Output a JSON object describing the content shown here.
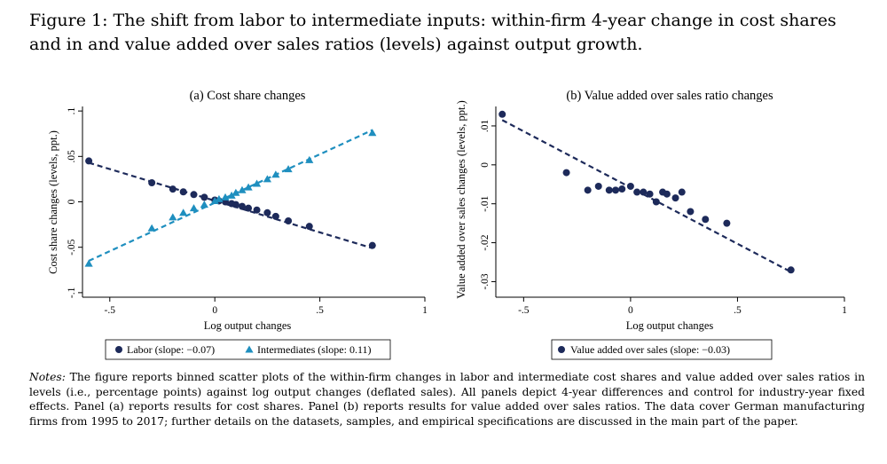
{
  "caption": "Figure 1: The shift from labor to intermediate inputs: within-firm 4-year change in cost shares and in and value added over sales ratios (levels) against output growth.",
  "notes": {
    "label": "Notes:",
    "text": " The figure reports binned scatter plots of the within-firm changes in labor and intermediate cost shares and value added over sales ratios in levels (i.e., percentage points) against log output changes (deflated sales). All panels depict 4-year differences and control for industry-year fixed effects. Panel (a) reports results for cost shares. Panel (b) reports results for value added over sales ratios. The data cover German manufacturing firms from 1995 to 2017; further details on the datasets, samples, and empirical specifications are discussed in the main part of the paper."
  },
  "colors": {
    "labor": "#1d2a5a",
    "intermediates": "#1f8fbf"
  },
  "chart_data": [
    {
      "type": "scatter",
      "title": "(a) Cost share changes",
      "xlabel": "Log output changes",
      "ylabel": "Cost share changes (levels, ppt.)",
      "xlim": [
        -0.63,
        1.0
      ],
      "ylim": [
        -0.105,
        0.105
      ],
      "xticks": [
        {
          "v": -0.5,
          "label": "-.5"
        },
        {
          "v": 0,
          "label": "0"
        },
        {
          "v": 0.5,
          "label": ".5"
        },
        {
          "v": 1,
          "label": "1"
        }
      ],
      "yticks": [
        {
          "v": -0.1,
          "label": "-.1"
        },
        {
          "v": -0.05,
          "label": "-.05"
        },
        {
          "v": 0,
          "label": "0"
        },
        {
          "v": 0.05,
          "label": ".05"
        },
        {
          "v": 0.1,
          "label": ".1"
        }
      ],
      "series": [
        {
          "name": "Labor (slope: −0.07)",
          "marker": "circle",
          "color": "#1d2a5a",
          "x": [
            -0.6,
            -0.3,
            -0.2,
            -0.15,
            -0.1,
            -0.05,
            0.0,
            0.02,
            0.05,
            0.08,
            0.1,
            0.13,
            0.16,
            0.2,
            0.25,
            0.29,
            0.35,
            0.45,
            0.75
          ],
          "y": [
            0.045,
            0.021,
            0.014,
            0.011,
            0.008,
            0.005,
            0.002,
            0.001,
            0.0,
            -0.002,
            -0.003,
            -0.005,
            -0.007,
            -0.009,
            -0.012,
            -0.016,
            -0.021,
            -0.027,
            -0.048
          ],
          "fit": [
            [
              -0.6,
              0.043
            ],
            [
              0.75,
              -0.051
            ]
          ]
        },
        {
          "name": "Intermediates (slope: 0.11)",
          "marker": "triangle",
          "color": "#1f8fbf",
          "x": [
            -0.6,
            -0.3,
            -0.2,
            -0.15,
            -0.1,
            -0.05,
            0.0,
            0.02,
            0.05,
            0.08,
            0.1,
            0.13,
            0.16,
            0.2,
            0.25,
            0.29,
            0.35,
            0.45,
            0.75
          ],
          "y": [
            -0.068,
            -0.029,
            -0.017,
            -0.012,
            -0.007,
            -0.003,
            0.001,
            0.003,
            0.005,
            0.007,
            0.01,
            0.013,
            0.016,
            0.02,
            0.025,
            0.03,
            0.036,
            0.046,
            0.076
          ],
          "fit": [
            [
              -0.6,
              -0.065
            ],
            [
              0.75,
              0.079
            ]
          ]
        }
      ]
    },
    {
      "type": "scatter",
      "title": "(b) Value added over sales ratio changes",
      "xlabel": "Log output changes",
      "ylabel": "Value added over sales changes (levels, ppt.)",
      "xlim": [
        -0.63,
        1.0
      ],
      "ylim": [
        -0.034,
        0.015
      ],
      "xticks": [
        {
          "v": -0.5,
          "label": "-.5"
        },
        {
          "v": 0,
          "label": "0"
        },
        {
          "v": 0.5,
          "label": ".5"
        },
        {
          "v": 1,
          "label": "1"
        }
      ],
      "yticks": [
        {
          "v": -0.03,
          "label": "-.03"
        },
        {
          "v": -0.02,
          "label": "-.02"
        },
        {
          "v": -0.01,
          "label": "-.01"
        },
        {
          "v": 0,
          "label": "0"
        },
        {
          "v": 0.01,
          "label": ".01"
        }
      ],
      "series": [
        {
          "name": "Value added over sales (slope: −0.03)",
          "marker": "circle",
          "color": "#1d2a5a",
          "x": [
            -0.6,
            -0.3,
            -0.2,
            -0.15,
            -0.1,
            -0.07,
            -0.04,
            0.0,
            0.03,
            0.06,
            0.09,
            0.12,
            0.15,
            0.17,
            0.21,
            0.24,
            0.28,
            0.35,
            0.45,
            0.75
          ],
          "y": [
            0.013,
            -0.002,
            -0.0065,
            -0.0055,
            -0.0065,
            -0.0065,
            -0.0062,
            -0.0055,
            -0.007,
            -0.007,
            -0.0075,
            -0.0095,
            -0.007,
            -0.0075,
            -0.0085,
            -0.007,
            -0.012,
            -0.014,
            -0.015,
            -0.027
          ],
          "fit": [
            [
              -0.6,
              0.0115
            ],
            [
              0.75,
              -0.0275
            ]
          ]
        }
      ]
    }
  ]
}
